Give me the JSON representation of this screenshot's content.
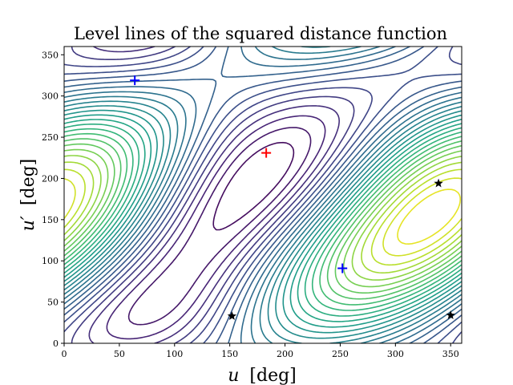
{
  "chart_data": {
    "type": "contour",
    "title": "Level lines of the squared distance function",
    "xlabel_var": "u",
    "xlabel_unit": "[deg]",
    "ylabel_var": "u′",
    "ylabel_unit": "[deg]",
    "xlim": [
      0,
      360
    ],
    "ylim": [
      0,
      360
    ],
    "xticks": [
      0,
      50,
      100,
      150,
      200,
      250,
      300,
      350
    ],
    "yticks": [
      0,
      50,
      100,
      150,
      200,
      250,
      300,
      350
    ],
    "colormap": "viridis",
    "grid": false,
    "markers": [
      {
        "name": "maximum",
        "symbol": "plus",
        "color": "#ff0000",
        "x": 183,
        "y": 231
      },
      {
        "name": "minimum",
        "symbol": "plus",
        "color": "#0000ff",
        "x": 64,
        "y": 319
      },
      {
        "name": "minimum",
        "symbol": "plus",
        "color": "#0000ff",
        "x": 252,
        "y": 91
      },
      {
        "name": "saddle",
        "symbol": "star",
        "color": "#000000",
        "x": 152,
        "y": 33
      },
      {
        "name": "saddle",
        "symbol": "star",
        "color": "#000000",
        "x": 339,
        "y": 194
      },
      {
        "name": "saddle",
        "symbol": "star",
        "color": "#000000",
        "x": 350,
        "y": 34
      }
    ]
  }
}
